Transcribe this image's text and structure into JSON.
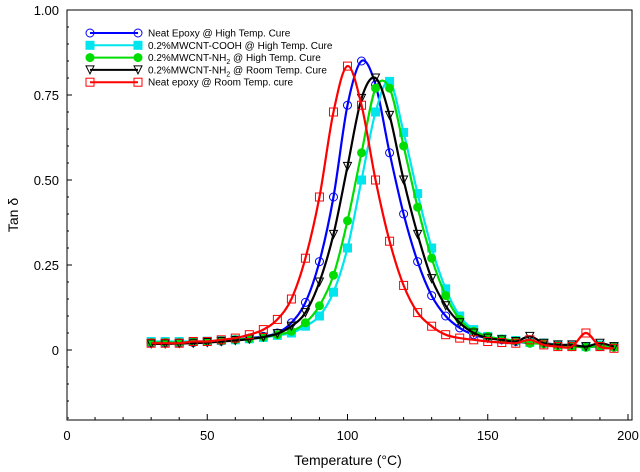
{
  "chart_data": {
    "type": "line",
    "title": "",
    "xlabel": "Temperature (°C)",
    "ylabel": "Tan δ",
    "xlim": [
      0,
      200
    ],
    "ylim": [
      -0.2,
      1.0
    ],
    "xticks": [
      0,
      50,
      100,
      150,
      200
    ],
    "xtick_labels": [
      "0",
      "50",
      "100",
      "150",
      "200"
    ],
    "yticks": [
      0,
      0.25,
      0.5,
      0.75,
      1.0
    ],
    "ytick_labels": [
      "0",
      "0.25",
      "0.50",
      "0.75",
      "1.00"
    ],
    "grid": false,
    "legend_placement": "top-left",
    "x": [
      30,
      35,
      40,
      45,
      50,
      55,
      60,
      65,
      70,
      75,
      80,
      85,
      90,
      95,
      100,
      105,
      110,
      115,
      120,
      125,
      130,
      135,
      140,
      145,
      150,
      155,
      160,
      165,
      170,
      175,
      180,
      185,
      190,
      195
    ],
    "series": [
      {
        "name": "Neat Epoxy @ High Temp. Cure",
        "color": "#0000ff",
        "marker": "circle",
        "values": [
          0.02,
          0.02,
          0.02,
          0.022,
          0.024,
          0.026,
          0.03,
          0.035,
          0.04,
          0.05,
          0.08,
          0.14,
          0.26,
          0.45,
          0.72,
          0.85,
          0.78,
          0.58,
          0.4,
          0.26,
          0.16,
          0.1,
          0.065,
          0.045,
          0.035,
          0.03,
          0.025,
          0.02,
          0.02,
          0.015,
          0.01,
          0.01,
          0.01,
          0.01
        ]
      },
      {
        "name": "0.2%MWCNT-COOH @ High Temp. Cure",
        "color": "#00e5ee",
        "marker": "square-filled",
        "values": [
          0.025,
          0.025,
          0.025,
          0.025,
          0.026,
          0.028,
          0.03,
          0.033,
          0.037,
          0.043,
          0.05,
          0.07,
          0.1,
          0.17,
          0.3,
          0.5,
          0.7,
          0.79,
          0.64,
          0.46,
          0.3,
          0.18,
          0.1,
          0.06,
          0.04,
          0.032,
          0.028,
          0.022,
          0.02,
          0.015,
          0.012,
          0.01,
          0.015,
          0.01
        ]
      },
      {
        "name": "0.2%MWCNT-NH2 @ High Temp. Cure",
        "color": "#00dd00",
        "marker": "circle-filled",
        "values": [
          0.022,
          0.022,
          0.022,
          0.023,
          0.025,
          0.027,
          0.03,
          0.033,
          0.038,
          0.045,
          0.055,
          0.08,
          0.13,
          0.22,
          0.38,
          0.58,
          0.77,
          0.77,
          0.6,
          0.42,
          0.27,
          0.16,
          0.09,
          0.055,
          0.04,
          0.032,
          0.027,
          0.02,
          0.018,
          0.012,
          0.01,
          0.008,
          0.012,
          0.008
        ]
      },
      {
        "name": "0.2%MWCNT-NH2 @ Room Temp. Cure",
        "color": "#000000",
        "marker": "triangle-down",
        "values": [
          0.018,
          0.018,
          0.019,
          0.02,
          0.022,
          0.025,
          0.028,
          0.032,
          0.038,
          0.048,
          0.07,
          0.11,
          0.2,
          0.34,
          0.54,
          0.74,
          0.8,
          0.69,
          0.5,
          0.34,
          0.21,
          0.13,
          0.08,
          0.05,
          0.035,
          0.03,
          0.025,
          0.04,
          0.02,
          0.015,
          0.015,
          0.01,
          0.02,
          0.01
        ]
      },
      {
        "name": "Neat epoxy @ Room Temp. cure",
        "color": "#ff0000",
        "marker": "square",
        "values": [
          0.02,
          0.02,
          0.02,
          0.025,
          0.025,
          0.03,
          0.035,
          0.045,
          0.06,
          0.09,
          0.15,
          0.27,
          0.45,
          0.7,
          0.835,
          0.72,
          0.5,
          0.32,
          0.19,
          0.11,
          0.07,
          0.045,
          0.035,
          0.03,
          0.025,
          0.022,
          0.02,
          0.03,
          0.015,
          0.01,
          0.01,
          0.05,
          0.01,
          0.005
        ]
      }
    ],
    "legend_labels": [
      {
        "main": "Neat Epoxy @ High Temp. Cure",
        "sub": ""
      },
      {
        "main": "0.2%MWCNT-COOH @ High Temp. Cure",
        "sub": ""
      },
      {
        "main": "0.2%MWCNT-NH",
        "sub": "2",
        "rest": " @ High Temp. Cure"
      },
      {
        "main": "0.2%MWCNT-NH",
        "sub": "2",
        "rest": " @ Room Temp. Cure"
      },
      {
        "main": "Neat epoxy @ Room Temp. cure",
        "sub": ""
      }
    ]
  }
}
